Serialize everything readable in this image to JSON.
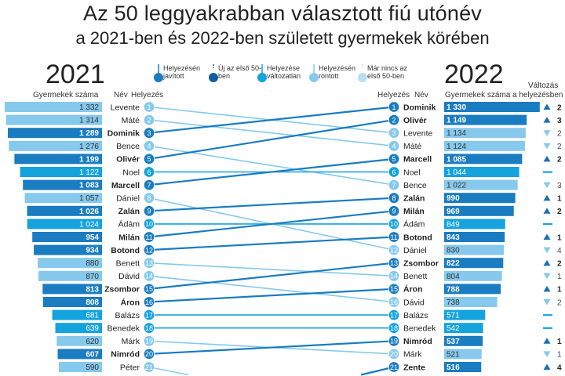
{
  "header": {
    "title": "Az 50 leggyakrabban választott fiú utónév",
    "subtitle": "a 2021-ben és 2022-ben született gyermekek körében",
    "year_left": "2021",
    "year_right": "2022"
  },
  "labels": {
    "left_count": "Gyermekek száma",
    "left_name": "Név",
    "left_rank": "Helyezés",
    "right_rank": "Helyezés",
    "right_name": "Név",
    "right_count": "Gyermekek száma",
    "change_1": "Változás",
    "change_2": "a helyezésben"
  },
  "legend": [
    {
      "key": "improved",
      "text": "Helyezésén javított",
      "color": "#1a7cc1"
    },
    {
      "key": "new",
      "text": "Új az első 50-ben",
      "color": "#0f5f9e"
    },
    {
      "key": "same",
      "text": "Helyezése változatlan",
      "color": "#14a3dc"
    },
    {
      "key": "worse",
      "text": "Helyezésén rontott",
      "color": "#86c9ec"
    },
    {
      "key": "dropped",
      "text": "Már nincs az első 50-ben",
      "color": "#b9dff3"
    }
  ],
  "colors": {
    "improved": "#1a7cc1",
    "new": "#0f5f9e",
    "same": "#14a3dc",
    "worse": "#86c9ec",
    "dropped": "#b9dff3",
    "up_arrow": "#1a6fb0",
    "down_arrow": "#86c9ec"
  },
  "chart_data": {
    "type": "table",
    "left_2021": [
      {
        "name": "Levente",
        "rank": "1",
        "count": "1 332",
        "value": 1332,
        "status": "worse"
      },
      {
        "name": "Máté",
        "rank": "2",
        "count": "1 314",
        "value": 1314,
        "status": "worse"
      },
      {
        "name": "Dominik",
        "rank": "3",
        "count": "1 289",
        "value": 1289,
        "status": "improved"
      },
      {
        "name": "Bence",
        "rank": "4",
        "count": "1 276",
        "value": 1276,
        "status": "worse"
      },
      {
        "name": "Olivér",
        "rank": "5",
        "count": "1 199",
        "value": 1199,
        "status": "improved"
      },
      {
        "name": "Noel",
        "rank": "6",
        "count": "1 122",
        "value": 1122,
        "status": "same"
      },
      {
        "name": "Marcell",
        "rank": "7",
        "count": "1 083",
        "value": 1083,
        "status": "improved"
      },
      {
        "name": "Dániel",
        "rank": "8",
        "count": "1 057",
        "value": 1057,
        "status": "worse"
      },
      {
        "name": "Zalán",
        "rank": "9",
        "count": "1 026",
        "value": 1026,
        "status": "improved"
      },
      {
        "name": "Ádám",
        "rank": "10",
        "count": "1 024",
        "value": 1024,
        "status": "same"
      },
      {
        "name": "Milán",
        "rank": "11",
        "count": "954",
        "value": 954,
        "status": "improved"
      },
      {
        "name": "Botond",
        "rank": "12",
        "count": "934",
        "value": 934,
        "status": "improved"
      },
      {
        "name": "Benett",
        "rank": "13",
        "count": "880",
        "value": 880,
        "status": "worse"
      },
      {
        "name": "Dávid",
        "rank": "14",
        "count": "870",
        "value": 870,
        "status": "worse"
      },
      {
        "name": "Zsombor",
        "rank": "15",
        "count": "813",
        "value": 813,
        "status": "improved"
      },
      {
        "name": "Áron",
        "rank": "16",
        "count": "808",
        "value": 808,
        "status": "improved"
      },
      {
        "name": "Balázs",
        "rank": "17",
        "count": "681",
        "value": 681,
        "status": "same"
      },
      {
        "name": "Benedek",
        "rank": "18",
        "count": "639",
        "value": 639,
        "status": "same"
      },
      {
        "name": "Márk",
        "rank": "19",
        "count": "620",
        "value": 620,
        "status": "worse"
      },
      {
        "name": "Nimród",
        "rank": "20",
        "count": "607",
        "value": 607,
        "status": "improved"
      },
      {
        "name": "Péter",
        "rank": "21",
        "count": "590",
        "value": 590,
        "status": "worse"
      }
    ],
    "right_2022": [
      {
        "name": "Dominik",
        "rank": "1",
        "count": "1 330",
        "value": 1330,
        "status": "improved",
        "change": "2",
        "dir": "up"
      },
      {
        "name": "Olivér",
        "rank": "2",
        "count": "1 149",
        "value": 1149,
        "status": "improved",
        "change": "3",
        "dir": "up"
      },
      {
        "name": "Levente",
        "rank": "3",
        "count": "1 134",
        "value": 1134,
        "status": "worse",
        "change": "2",
        "dir": "down"
      },
      {
        "name": "Máté",
        "rank": "4",
        "count": "1 124",
        "value": 1124,
        "status": "worse",
        "change": "2",
        "dir": "down"
      },
      {
        "name": "Marcell",
        "rank": "5",
        "count": "1 085",
        "value": 1085,
        "status": "improved",
        "change": "2",
        "dir": "up"
      },
      {
        "name": "Noel",
        "rank": "6",
        "count": "1 044",
        "value": 1044,
        "status": "same",
        "change": "",
        "dir": "same"
      },
      {
        "name": "Bence",
        "rank": "7",
        "count": "1 022",
        "value": 1022,
        "status": "worse",
        "change": "3",
        "dir": "down"
      },
      {
        "name": "Zalán",
        "rank": "8",
        "count": "990",
        "value": 990,
        "status": "improved",
        "change": "1",
        "dir": "up"
      },
      {
        "name": "Milán",
        "rank": "9",
        "count": "969",
        "value": 969,
        "status": "improved",
        "change": "2",
        "dir": "up"
      },
      {
        "name": "Ádám",
        "rank": "10",
        "count": "849",
        "value": 849,
        "status": "same",
        "change": "",
        "dir": "same"
      },
      {
        "name": "Botond",
        "rank": "11",
        "count": "843",
        "value": 843,
        "status": "improved",
        "change": "1",
        "dir": "up"
      },
      {
        "name": "Dániel",
        "rank": "12",
        "count": "830",
        "value": 830,
        "status": "worse",
        "change": "4",
        "dir": "down"
      },
      {
        "name": "Zsombor",
        "rank": "13",
        "count": "822",
        "value": 822,
        "status": "improved",
        "change": "2",
        "dir": "up"
      },
      {
        "name": "Benett",
        "rank": "14",
        "count": "804",
        "value": 804,
        "status": "worse",
        "change": "1",
        "dir": "down"
      },
      {
        "name": "Áron",
        "rank": "15",
        "count": "788",
        "value": 788,
        "status": "improved",
        "change": "1",
        "dir": "up"
      },
      {
        "name": "Dávid",
        "rank": "16",
        "count": "738",
        "value": 738,
        "status": "worse",
        "change": "2",
        "dir": "down"
      },
      {
        "name": "Balázs",
        "rank": "17",
        "count": "571",
        "value": 571,
        "status": "same",
        "change": "",
        "dir": "same"
      },
      {
        "name": "Benedek",
        "rank": "18",
        "count": "542",
        "value": 542,
        "status": "same",
        "change": "",
        "dir": "same"
      },
      {
        "name": "Nimród",
        "rank": "19",
        "count": "537",
        "value": 537,
        "status": "improved",
        "change": "1",
        "dir": "up"
      },
      {
        "name": "Márk",
        "rank": "20",
        "count": "521",
        "value": 521,
        "status": "worse",
        "change": "1",
        "dir": "down"
      },
      {
        "name": "Zente",
        "rank": "21",
        "count": "516",
        "value": 516,
        "status": "improved",
        "change": "4",
        "dir": "up"
      }
    ]
  }
}
